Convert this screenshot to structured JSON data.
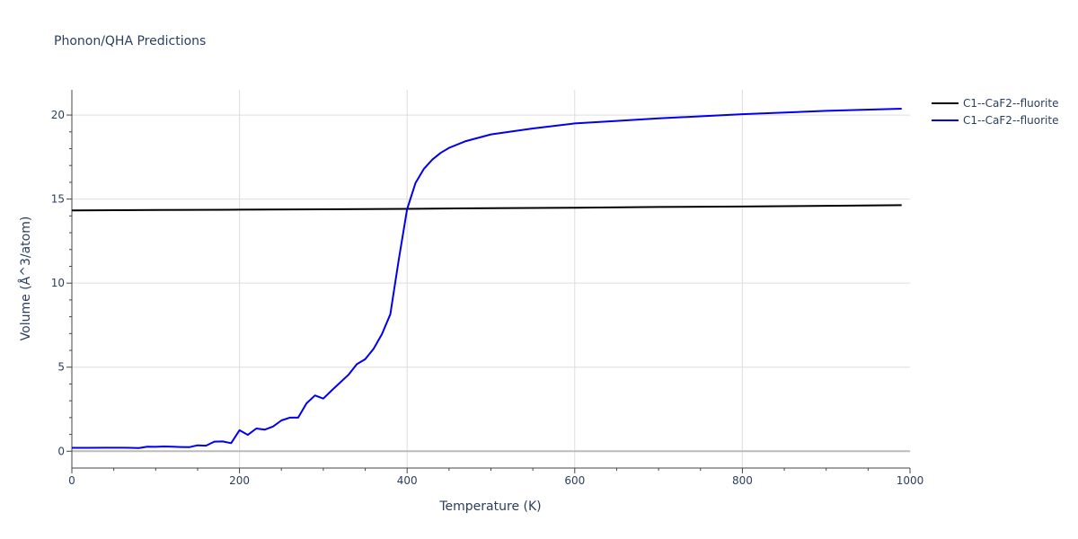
{
  "chart_data": {
    "type": "line",
    "title": "Phonon/QHA Predictions",
    "xlabel": "Temperature (K)",
    "ylabel": "Volume (Å^3/atom)",
    "xlim": [
      0,
      1000
    ],
    "ylim": [
      -1,
      21.5
    ],
    "xticks": [
      0,
      200,
      400,
      600,
      800,
      1000
    ],
    "yticks": [
      0,
      5,
      10,
      15,
      20
    ],
    "grid": true,
    "legend_position": "top-right",
    "series": [
      {
        "name": "C1--CaF2--fluorite",
        "color": "#000000",
        "x": [
          0,
          100,
          200,
          300,
          400,
          500,
          600,
          700,
          800,
          900,
          990
        ],
        "y": [
          14.33,
          14.35,
          14.37,
          14.39,
          14.42,
          14.46,
          14.49,
          14.53,
          14.56,
          14.6,
          14.64
        ]
      },
      {
        "name": "C1--CaF2--fluorite",
        "color": "#0000ee",
        "x": [
          0,
          20,
          40,
          60,
          70,
          80,
          90,
          100,
          110,
          120,
          130,
          140,
          150,
          160,
          170,
          180,
          190,
          200,
          210,
          220,
          230,
          240,
          250,
          260,
          270,
          280,
          290,
          300,
          310,
          320,
          330,
          340,
          350,
          360,
          370,
          380,
          390,
          400,
          410,
          420,
          430,
          440,
          450,
          470,
          500,
          550,
          600,
          650,
          700,
          800,
          900,
          990
        ],
        "y": [
          0.2,
          0.2,
          0.21,
          0.21,
          0.2,
          0.19,
          0.27,
          0.26,
          0.28,
          0.27,
          0.25,
          0.24,
          0.35,
          0.33,
          0.57,
          0.58,
          0.48,
          1.25,
          0.97,
          1.35,
          1.28,
          1.47,
          1.83,
          2.0,
          2.0,
          2.85,
          3.32,
          3.13,
          3.62,
          4.08,
          4.55,
          5.18,
          5.47,
          6.1,
          6.97,
          8.15,
          11.4,
          14.4,
          15.95,
          16.8,
          17.35,
          17.75,
          18.05,
          18.45,
          18.85,
          19.2,
          19.5,
          19.65,
          19.8,
          20.05,
          20.25,
          20.38
        ]
      }
    ]
  }
}
